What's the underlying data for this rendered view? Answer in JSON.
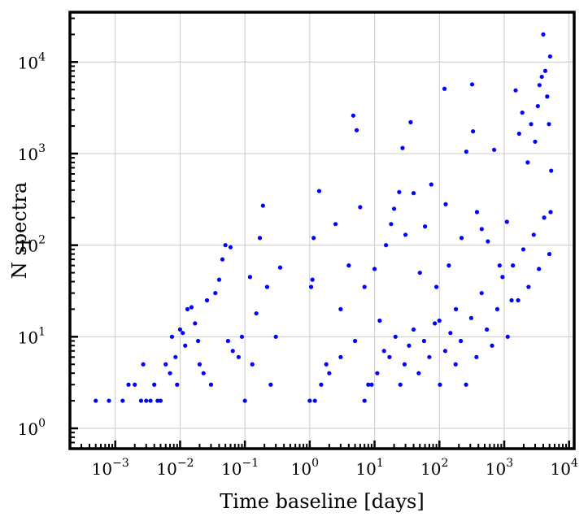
{
  "chart_data": {
    "type": "scatter",
    "xscale": "log",
    "yscale": "log",
    "xlim": [
      0.0002,
      12000
    ],
    "ylim": [
      0.6,
      35000
    ],
    "xlabel": "Time baseline [days]",
    "ylabel": "N spectra",
    "grid": true,
    "marker_color": "#0000ff",
    "x_ticks": [
      {
        "value": 0.001,
        "base": "10",
        "exp": "−3"
      },
      {
        "value": 0.01,
        "base": "10",
        "exp": "−2"
      },
      {
        "value": 0.1,
        "base": "10",
        "exp": "−1"
      },
      {
        "value": 1,
        "base": "10",
        "exp": "0"
      },
      {
        "value": 10,
        "base": "10",
        "exp": "1"
      },
      {
        "value": 100,
        "base": "10",
        "exp": "2"
      },
      {
        "value": 1000,
        "base": "10",
        "exp": "3"
      },
      {
        "value": 10000,
        "base": "10",
        "exp": "4"
      }
    ],
    "y_ticks": [
      {
        "value": 1,
        "base": "10",
        "exp": "0"
      },
      {
        "value": 10,
        "base": "10",
        "exp": "1"
      },
      {
        "value": 100,
        "base": "10",
        "exp": "2"
      },
      {
        "value": 1000,
        "base": "10",
        "exp": "3"
      },
      {
        "value": 10000,
        "base": "10",
        "exp": "4"
      }
    ],
    "points": [
      [
        0.0005,
        2
      ],
      [
        0.0008,
        2
      ],
      [
        0.0013,
        2
      ],
      [
        0.0016,
        3
      ],
      [
        0.002,
        3
      ],
      [
        0.0025,
        2
      ],
      [
        0.0027,
        5
      ],
      [
        0.003,
        2
      ],
      [
        0.0035,
        2
      ],
      [
        0.004,
        3
      ],
      [
        0.0045,
        2
      ],
      [
        0.005,
        2
      ],
      [
        0.006,
        5
      ],
      [
        0.007,
        4
      ],
      [
        0.0075,
        10
      ],
      [
        0.0085,
        6
      ],
      [
        0.009,
        3
      ],
      [
        0.01,
        12
      ],
      [
        0.011,
        11
      ],
      [
        0.012,
        8
      ],
      [
        0.013,
        20
      ],
      [
        0.015,
        21
      ],
      [
        0.017,
        14
      ],
      [
        0.019,
        9
      ],
      [
        0.02,
        5
      ],
      [
        0.023,
        4
      ],
      [
        0.026,
        25
      ],
      [
        0.03,
        3
      ],
      [
        0.035,
        30
      ],
      [
        0.04,
        42
      ],
      [
        0.045,
        70
      ],
      [
        0.05,
        100
      ],
      [
        0.055,
        9
      ],
      [
        0.06,
        95
      ],
      [
        0.065,
        7
      ],
      [
        0.08,
        6
      ],
      [
        0.09,
        10
      ],
      [
        0.1,
        2
      ],
      [
        0.12,
        45
      ],
      [
        0.13,
        5
      ],
      [
        0.15,
        18
      ],
      [
        0.17,
        120
      ],
      [
        0.19,
        270
      ],
      [
        0.22,
        35
      ],
      [
        0.25,
        3
      ],
      [
        0.3,
        10
      ],
      [
        0.35,
        57
      ],
      [
        1.0,
        2
      ],
      [
        1.05,
        35
      ],
      [
        1.1,
        42
      ],
      [
        1.15,
        120
      ],
      [
        1.4,
        390
      ],
      [
        1.8,
        5
      ],
      [
        2.5,
        170
      ],
      [
        3.0,
        20
      ],
      [
        4.0,
        60
      ],
      [
        4.7,
        2600
      ],
      [
        5.3,
        1800
      ],
      [
        6.0,
        260
      ],
      [
        7.0,
        35
      ],
      [
        8.0,
        3
      ],
      [
        10.0,
        55
      ],
      [
        12.0,
        15
      ],
      [
        15.0,
        100
      ],
      [
        18.0,
        170
      ],
      [
        20.0,
        250
      ],
      [
        24.0,
        380
      ],
      [
        27.0,
        1150
      ],
      [
        30.0,
        130
      ],
      [
        36.0,
        2200
      ],
      [
        40.0,
        370
      ],
      [
        50.0,
        50
      ],
      [
        60.0,
        160
      ],
      [
        75.0,
        460
      ],
      [
        90.0,
        35
      ],
      [
        100.0,
        15
      ],
      [
        120.0,
        5100
      ],
      [
        125.0,
        280
      ],
      [
        140.0,
        60
      ],
      [
        180.0,
        20
      ],
      [
        220.0,
        120
      ],
      [
        260.0,
        1050
      ],
      [
        320.0,
        5700
      ],
      [
        330.0,
        1750
      ],
      [
        380.0,
        230
      ],
      [
        450.0,
        150
      ],
      [
        560.0,
        110
      ],
      [
        700.0,
        1100
      ],
      [
        850.0,
        60
      ],
      [
        1100.0,
        180
      ],
      [
        1300.0,
        25
      ],
      [
        1500.0,
        4900
      ],
      [
        1700.0,
        1650
      ],
      [
        1900.0,
        2800
      ],
      [
        2300.0,
        800
      ],
      [
        2600.0,
        2100
      ],
      [
        3000.0,
        1350
      ],
      [
        3300.0,
        3300
      ],
      [
        3500.0,
        5600
      ],
      [
        3800.0,
        6900
      ],
      [
        4000.0,
        20000
      ],
      [
        4300.0,
        8000
      ],
      [
        4600.0,
        4200
      ],
      [
        4900.0,
        2100
      ],
      [
        5100.0,
        11500
      ],
      [
        5200.0,
        230
      ],
      [
        5300.0,
        650
      ],
      [
        1.2,
        2
      ],
      [
        1.5,
        3
      ],
      [
        2.0,
        4
      ],
      [
        3.0,
        6
      ],
      [
        5.0,
        9
      ],
      [
        7.0,
        2
      ],
      [
        9.0,
        3
      ],
      [
        11.0,
        4
      ],
      [
        14.0,
        7
      ],
      [
        17.0,
        6
      ],
      [
        21.0,
        10
      ],
      [
        25.0,
        3
      ],
      [
        29.0,
        5
      ],
      [
        34.0,
        8
      ],
      [
        40.0,
        12
      ],
      [
        48.0,
        4
      ],
      [
        58.0,
        9
      ],
      [
        70.0,
        6
      ],
      [
        85.0,
        14
      ],
      [
        102.0,
        3
      ],
      [
        123.0,
        7
      ],
      [
        148.0,
        11
      ],
      [
        178.0,
        5
      ],
      [
        214.0,
        9
      ],
      [
        258.0,
        3
      ],
      [
        310.0,
        16
      ],
      [
        373.0,
        6
      ],
      [
        449.0,
        30
      ],
      [
        540.0,
        12
      ],
      [
        650.0,
        8
      ],
      [
        782.0,
        20
      ],
      [
        941.0,
        45
      ],
      [
        1132.0,
        10
      ],
      [
        1362.0,
        60
      ],
      [
        1639.0,
        25
      ],
      [
        1972.0,
        90
      ],
      [
        2373.0,
        35
      ],
      [
        2855.0,
        130
      ],
      [
        3435.0,
        55
      ],
      [
        4133.0,
        200
      ],
      [
        4973.0,
        80
      ]
    ]
  }
}
